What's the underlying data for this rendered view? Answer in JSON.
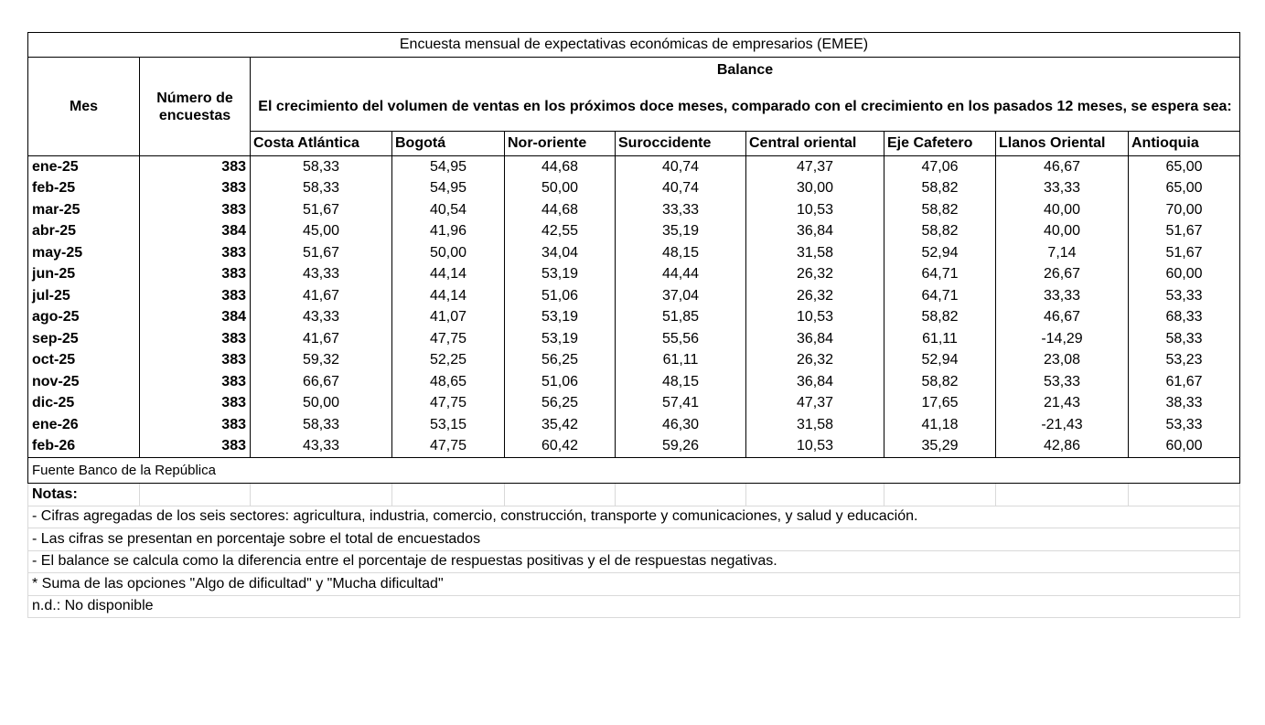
{
  "title": "Encuesta mensual de expectativas económicas de empresarios (EMEE)",
  "header": {
    "month": "Mes",
    "count": "Número de encuestas",
    "balance": "Balance",
    "question": "El crecimiento del volumen de ventas en los próximos doce meses, comparado con el crecimiento en los pasados 12 meses, se espera sea:",
    "regions": [
      "Costa Atlántica",
      "Bogotá",
      "Nor-oriente",
      "Suroccidente",
      "Central oriental",
      "Eje Cafetero",
      "Llanos Oriental",
      "Antioquia"
    ]
  },
  "rows": [
    [
      "ene-25",
      "383",
      "58,33",
      "54,95",
      "44,68",
      "40,74",
      "47,37",
      "47,06",
      "46,67",
      "65,00"
    ],
    [
      "feb-25",
      "383",
      "58,33",
      "54,95",
      "50,00",
      "40,74",
      "30,00",
      "58,82",
      "33,33",
      "65,00"
    ],
    [
      "mar-25",
      "383",
      "51,67",
      "40,54",
      "44,68",
      "33,33",
      "10,53",
      "58,82",
      "40,00",
      "70,00"
    ],
    [
      "abr-25",
      "384",
      "45,00",
      "41,96",
      "42,55",
      "35,19",
      "36,84",
      "58,82",
      "40,00",
      "51,67"
    ],
    [
      "may-25",
      "383",
      "51,67",
      "50,00",
      "34,04",
      "48,15",
      "31,58",
      "52,94",
      "7,14",
      "51,67"
    ],
    [
      "jun-25",
      "383",
      "43,33",
      "44,14",
      "53,19",
      "44,44",
      "26,32",
      "64,71",
      "26,67",
      "60,00"
    ],
    [
      "jul-25",
      "383",
      "41,67",
      "44,14",
      "51,06",
      "37,04",
      "26,32",
      "64,71",
      "33,33",
      "53,33"
    ],
    [
      "ago-25",
      "384",
      "43,33",
      "41,07",
      "53,19",
      "51,85",
      "10,53",
      "58,82",
      "46,67",
      "68,33"
    ],
    [
      "sep-25",
      "383",
      "41,67",
      "47,75",
      "53,19",
      "55,56",
      "36,84",
      "61,11",
      "-14,29",
      "58,33"
    ],
    [
      "oct-25",
      "383",
      "59,32",
      "52,25",
      "56,25",
      "61,11",
      "26,32",
      "52,94",
      "23,08",
      "53,23"
    ],
    [
      "nov-25",
      "383",
      "66,67",
      "48,65",
      "51,06",
      "48,15",
      "36,84",
      "58,82",
      "53,33",
      "61,67"
    ],
    [
      "dic-25",
      "383",
      "50,00",
      "47,75",
      "56,25",
      "57,41",
      "47,37",
      "17,65",
      "21,43",
      "38,33"
    ],
    [
      "ene-26",
      "383",
      "58,33",
      "53,15",
      "35,42",
      "46,30",
      "31,58",
      "41,18",
      "-21,43",
      "53,33"
    ],
    [
      "feb-26",
      "383",
      "43,33",
      "47,75",
      "60,42",
      "59,26",
      "10,53",
      "35,29",
      "42,86",
      "60,00"
    ]
  ],
  "source": "Fuente Banco de la República",
  "notes_title": "Notas:",
  "notes": [
    "- Cifras agregadas de los seis sectores: agricultura, industria, comercio, construcción, transporte y comunicaciones, y salud y educación.",
    "- Las cifras se presentan en porcentaje sobre el total de encuestados",
    "- El balance se calcula como la diferencia entre el porcentaje de respuestas positivas y el de respuestas negativas.",
    "* Suma de las opciones \"Algo de dificultad\" y \"Mucha dificultad\"",
    "n.d.: No disponible"
  ]
}
